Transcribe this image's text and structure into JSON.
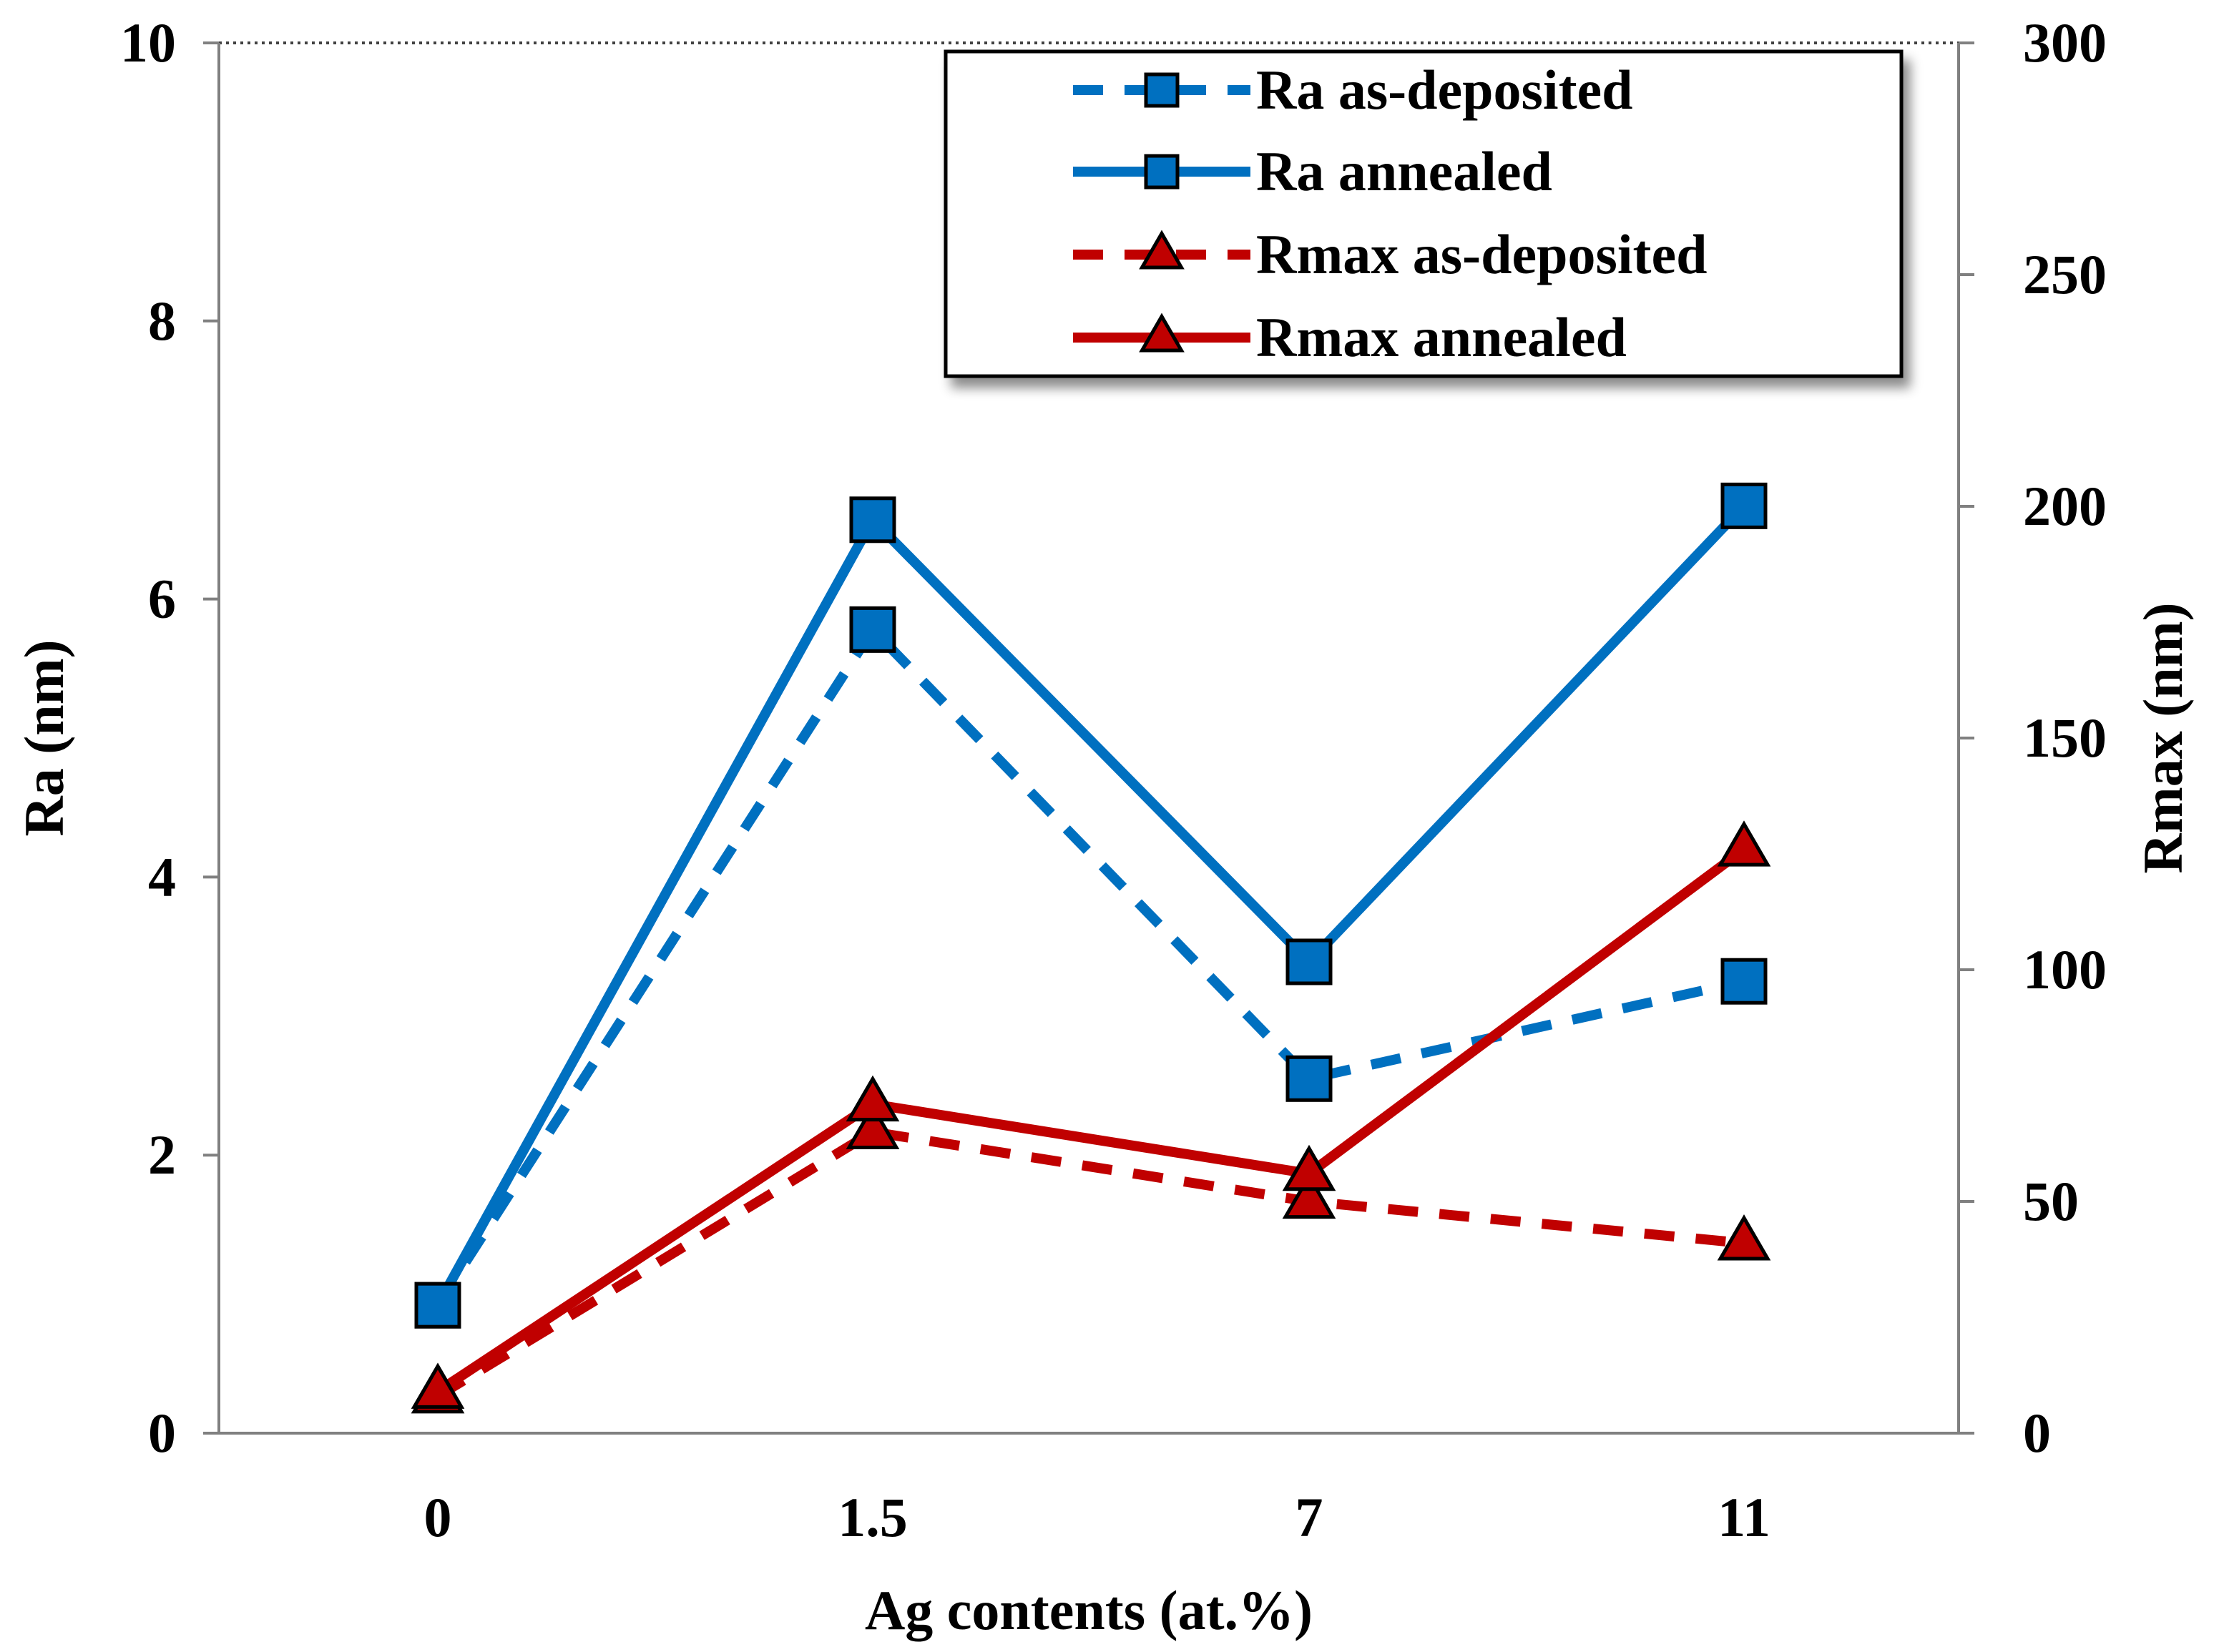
{
  "chart_data": {
    "type": "line",
    "title": "",
    "xlabel": "Ag contents (at.%)",
    "ylabel": "Ra (nm)",
    "y2label": "Rmax (nm)",
    "categories": [
      "0",
      "1.5",
      "7",
      "11"
    ],
    "ylim": [
      0,
      10
    ],
    "y2lim": [
      0,
      300
    ],
    "yticks": [
      "0",
      "2",
      "4",
      "6",
      "8",
      "10"
    ],
    "y2ticks": [
      "0",
      "50",
      "100",
      "150",
      "200",
      "250",
      "300"
    ],
    "legend_position": "top-right",
    "series": [
      {
        "name": "Ra as-deposited",
        "axis": "left",
        "marker": "square",
        "dash": true,
        "color": "#0070C0",
        "values": [
          0.92,
          5.78,
          2.55,
          3.25
        ]
      },
      {
        "name": "Ra annealed",
        "axis": "left",
        "marker": "square",
        "dash": false,
        "color": "#0070C0",
        "values": [
          0.92,
          6.57,
          3.39,
          6.67
        ]
      },
      {
        "name": "Rmax as-deposited",
        "axis": "right",
        "marker": "triangle",
        "dash": true,
        "color": "#C00000",
        "values": [
          8,
          65,
          50,
          41
        ]
      },
      {
        "name": "Rmax annealed",
        "axis": "right",
        "marker": "triangle",
        "dash": false,
        "color": "#C00000",
        "values": [
          9,
          71,
          56,
          126
        ]
      }
    ]
  }
}
